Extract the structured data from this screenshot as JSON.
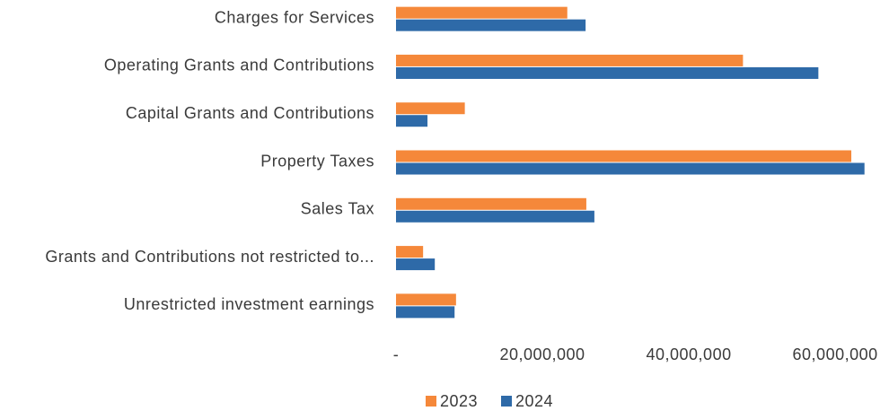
{
  "chart_data": {
    "type": "barh",
    "categories": [
      "Charges for Services",
      "Operating Grants and Contributions",
      "Capital Grants and Contributions",
      "Property Taxes",
      "Sales Tax",
      "Grants and Contributions not restricted to...",
      "Unrestricted investment earnings"
    ],
    "series": [
      {
        "name": "2023",
        "color": "#f5883a",
        "values": [
          23400000,
          47400000,
          9400000,
          62200000,
          26000000,
          3700000,
          8200000
        ]
      },
      {
        "name": "2024",
        "color": "#2e6aa8",
        "values": [
          25900000,
          57700000,
          4300000,
          64000000,
          27100000,
          5300000,
          8000000
        ]
      }
    ],
    "xlim": [
      0,
      66000000
    ],
    "xticks": [
      {
        "value": 0,
        "label": "-"
      },
      {
        "value": 20000000,
        "label": "20,000,000"
      },
      {
        "value": 40000000,
        "label": "40,000,000"
      },
      {
        "value": 60000000,
        "label": "60,000,000"
      }
    ],
    "grid": false,
    "legend": "bottom"
  }
}
